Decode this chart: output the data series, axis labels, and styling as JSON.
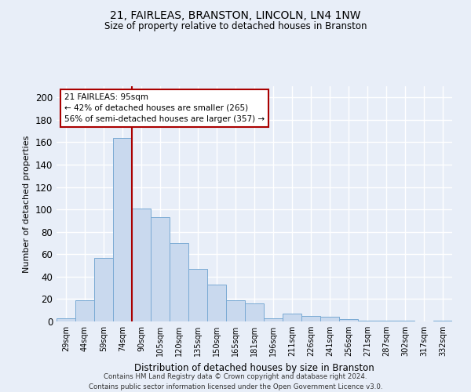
{
  "title1": "21, FAIRLEAS, BRANSTON, LINCOLN, LN4 1NW",
  "title2": "Size of property relative to detached houses in Branston",
  "xlabel": "Distribution of detached houses by size in Branston",
  "ylabel": "Number of detached properties",
  "categories": [
    "29sqm",
    "44sqm",
    "59sqm",
    "74sqm",
    "90sqm",
    "105sqm",
    "120sqm",
    "135sqm",
    "150sqm",
    "165sqm",
    "181sqm",
    "196sqm",
    "211sqm",
    "226sqm",
    "241sqm",
    "256sqm",
    "271sqm",
    "287sqm",
    "302sqm",
    "317sqm",
    "332sqm"
  ],
  "values": [
    3,
    19,
    57,
    164,
    101,
    93,
    70,
    47,
    33,
    19,
    16,
    3,
    7,
    5,
    4,
    2,
    1,
    1,
    1,
    0,
    1
  ],
  "bar_color": "#c9d9ee",
  "bar_edge_color": "#7aaad4",
  "annotation_title": "21 FAIRLEAS: 95sqm",
  "annotation_line1": "← 42% of detached houses are smaller (265)",
  "annotation_line2": "56% of semi-detached houses are larger (357) →",
  "vline_color": "#aa0000",
  "vline_x_index": 3,
  "ylim": [
    0,
    210
  ],
  "yticks": [
    0,
    20,
    40,
    60,
    80,
    100,
    120,
    140,
    160,
    180,
    200
  ],
  "footer1": "Contains HM Land Registry data © Crown copyright and database right 2024.",
  "footer2": "Contains public sector information licensed under the Open Government Licence v3.0.",
  "bg_color": "#e8eef8",
  "plot_bg": "#e8eef8",
  "grid_color": "#ffffff"
}
